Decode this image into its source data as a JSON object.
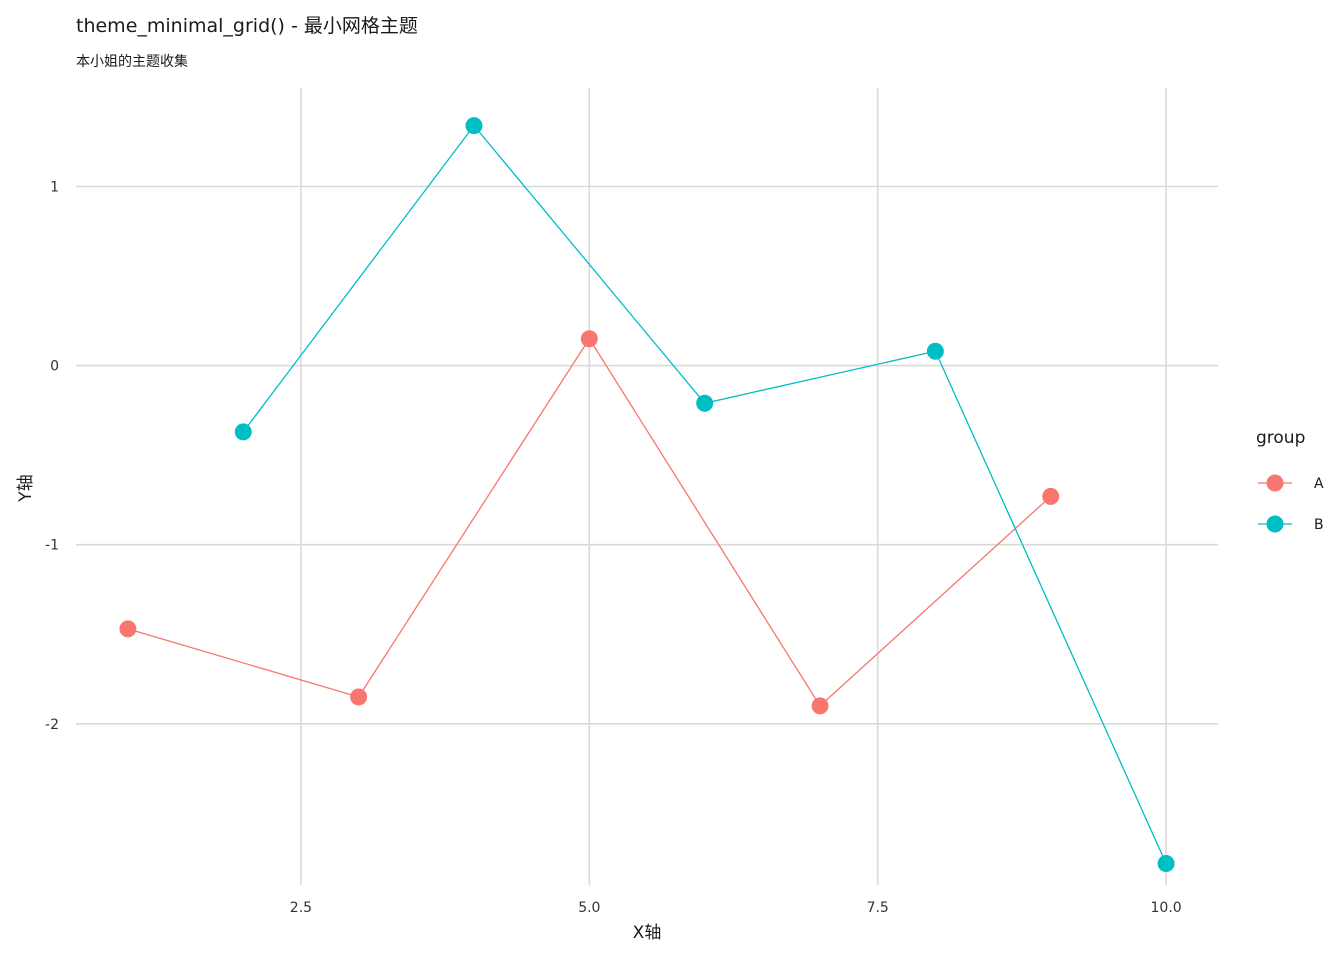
{
  "chart_data": {
    "type": "line",
    "title": "theme_minimal_grid() - 最小网格主题",
    "subtitle": "本小姐的主题收集",
    "xlabel": "X轴",
    "ylabel": "Y轴",
    "xlim": [
      0.55,
      10.45
    ],
    "ylim": [
      -2.9,
      1.55
    ],
    "x_ticks": [
      2.5,
      5.0,
      7.5,
      10.0
    ],
    "x_tick_labels": [
      "2.5",
      "5.0",
      "7.5",
      "10.0"
    ],
    "y_ticks": [
      -2,
      -1,
      0,
      1
    ],
    "y_tick_labels": [
      "-2",
      "-1",
      "0",
      "1"
    ],
    "grid": true,
    "legend": {
      "title": "group",
      "position": "right"
    },
    "series": [
      {
        "name": "A",
        "color": "#F8766D",
        "x": [
          1,
          3,
          5,
          7,
          9
        ],
        "y": [
          -1.47,
          -1.85,
          0.15,
          -1.9,
          -0.73
        ]
      },
      {
        "name": "B",
        "color": "#00BFC4",
        "x": [
          2,
          4,
          6,
          8,
          10
        ],
        "y": [
          -0.37,
          1.34,
          -0.21,
          0.08,
          -2.78
        ]
      }
    ]
  }
}
